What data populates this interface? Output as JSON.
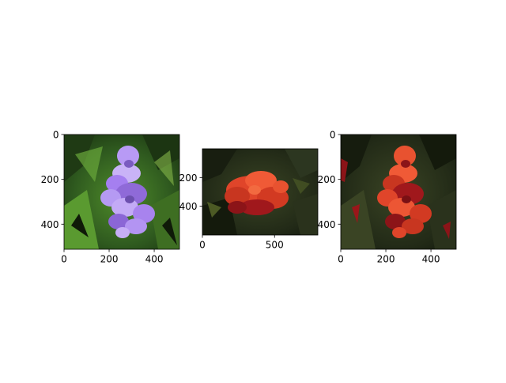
{
  "chart_data": [
    {
      "type": "image",
      "content": "purple flowers on green foliage",
      "xlim": [
        0,
        512
      ],
      "ylim": [
        512,
        0
      ],
      "xticks": [
        0,
        200,
        400
      ],
      "yticks": [
        0,
        200,
        400
      ],
      "xtick_labels": [
        "0",
        "200",
        "400"
      ],
      "ytick_labels": [
        "0",
        "200",
        "400"
      ],
      "colors": {
        "flower": "#a57ff0",
        "foliage": "#2f5a1f"
      }
    },
    {
      "type": "image",
      "content": "red flower on dark foliage",
      "xlim": [
        0,
        800
      ],
      "ylim": [
        600,
        0
      ],
      "xticks": [
        0,
        500
      ],
      "yticks": [
        200,
        400
      ],
      "xtick_labels": [
        "0",
        "500"
      ],
      "ytick_labels": [
        "200",
        "400"
      ],
      "colors": {
        "flower": "#e0452a",
        "foliage": "#1e2616"
      }
    },
    {
      "type": "image",
      "content": "purple flowers recolored red on dark foliage",
      "xlim": [
        0,
        512
      ],
      "ylim": [
        512,
        0
      ],
      "xticks": [
        0,
        200,
        400
      ],
      "yticks": [
        0,
        200,
        400
      ],
      "xtick_labels": [
        "0",
        "200",
        "400"
      ],
      "ytick_labels": [
        "0",
        "200",
        "400"
      ],
      "colors": {
        "flower": "#e0452a",
        "foliage": "#1e2616"
      }
    }
  ]
}
